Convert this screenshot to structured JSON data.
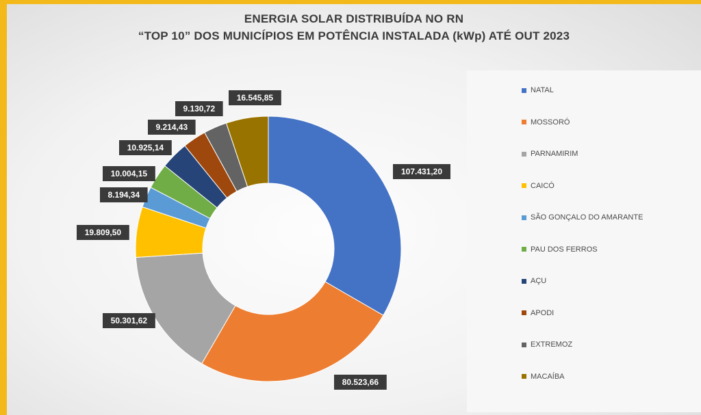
{
  "chart_data": {
    "type": "pie",
    "title": "ENERGIA SOLAR DISTRIBUÍDA NO RN",
    "subtitle": "“TOP 10” DOS MUNICÍPIOS EM POTÊNCIA INSTALADA (kWp) ATÉ OUT 2023",
    "donut": true,
    "legend_position": "right",
    "categories": [
      "NATAL",
      "MOSSORÓ",
      "PARNAMIRIM",
      "CAICÓ",
      "SÃO GONÇALO DO AMARANTE",
      "PAU DOS FERROS",
      "AÇU",
      "APODI",
      "EXTREMOZ",
      "MACAÍBA"
    ],
    "values": [
      107431.2,
      80523.66,
      50301.62,
      19809.5,
      8194.34,
      10004.15,
      10925.14,
      9214.43,
      9130.72,
      16545.85
    ],
    "value_labels": [
      "107.431,20",
      "80.523,66",
      "50.301,62",
      "19.809,50",
      "8.194,34",
      "10.004,15",
      "10.925,14",
      "9.214,43",
      "9.130,72",
      "16.545,85"
    ],
    "colors": [
      "#4472c4",
      "#ed7d31",
      "#a5a5a5",
      "#ffc000",
      "#5b9bd5",
      "#70ad47",
      "#264478",
      "#9e480e",
      "#636363",
      "#997300"
    ]
  }
}
